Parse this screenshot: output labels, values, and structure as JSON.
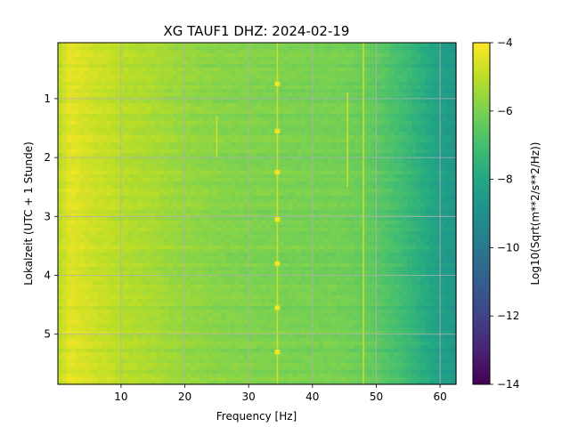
{
  "chart_data": {
    "type": "heatmap",
    "title": "XG TAUF1  DHZ: 2024-02-19",
    "xlabel": "Frequency [Hz]",
    "ylabel": "Lokalzeit (UTC + 1 Stunde)",
    "xlim": [
      0.1,
      62.5
    ],
    "ylim": [
      5.85,
      0.05
    ],
    "xticks": [
      10,
      20,
      30,
      40,
      50,
      60
    ],
    "yticks": [
      1,
      2,
      3,
      4,
      5
    ],
    "grid": true,
    "colormap": "viridis",
    "colorbar": {
      "label": "Log10(Sqrt(m**2/s**2/Hz))",
      "range": [
        -14,
        -4
      ],
      "ticks": [
        -4,
        -6,
        -8,
        -10,
        -12,
        -14
      ],
      "tick_labels": [
        "−4",
        "−6",
        "−8",
        "−10",
        "−12",
        "−14"
      ]
    },
    "spectral_profile": {
      "frequency_hz": [
        0.1,
        2,
        4,
        6,
        8,
        10,
        15,
        20,
        25,
        30,
        35,
        40,
        45,
        48,
        50,
        52,
        54,
        56,
        58,
        60,
        62.5
      ],
      "log10_amplitude": [
        -5.1,
        -4.4,
        -4.6,
        -4.8,
        -4.9,
        -5.1,
        -5.3,
        -5.6,
        -5.8,
        -5.9,
        -6.0,
        -6.05,
        -6.1,
        -6.3,
        -6.5,
        -6.8,
        -7.1,
        -7.5,
        -7.9,
        -8.3,
        -8.7
      ]
    },
    "narrowband_lines": [
      {
        "frequency_hz": 25,
        "start_h": 1.3,
        "end_h": 2.0
      },
      {
        "frequency_hz": 34.5,
        "start_h": 0.05,
        "end_h": 5.85
      },
      {
        "frequency_hz": 45.5,
        "start_h": 0.9,
        "end_h": 2.5
      },
      {
        "frequency_hz": 48,
        "start_h": 0.05,
        "end_h": 5.85
      }
    ],
    "bursts": [
      {
        "frequency_hz": 34.5,
        "time_h": 0.75
      },
      {
        "frequency_hz": 34.5,
        "time_h": 1.55
      },
      {
        "frequency_hz": 34.5,
        "time_h": 2.25
      },
      {
        "frequency_hz": 34.5,
        "time_h": 3.05
      },
      {
        "frequency_hz": 34.5,
        "time_h": 3.8
      },
      {
        "frequency_hz": 34.5,
        "time_h": 4.55
      },
      {
        "frequency_hz": 34.5,
        "time_h": 5.3
      }
    ]
  }
}
